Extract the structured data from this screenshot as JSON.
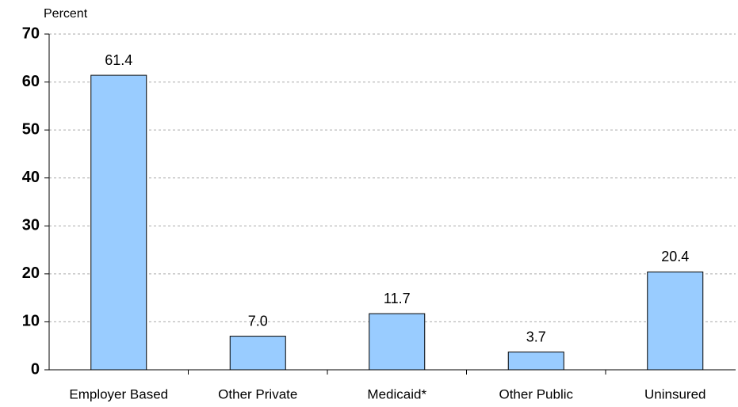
{
  "chart_data": {
    "type": "bar",
    "y_label": "Percent",
    "categories": [
      "Employer Based",
      "Other Private",
      "Medicaid*",
      "Other Public",
      "Uninsured"
    ],
    "values": [
      61.4,
      7.0,
      11.7,
      3.7,
      20.4
    ],
    "value_labels": [
      "61.4",
      "7.0",
      "11.7",
      "3.7",
      "20.4"
    ],
    "color": "#99ccff",
    "ylim": [
      0,
      70
    ],
    "yticks": [
      0,
      10,
      20,
      30,
      40,
      50,
      60,
      70
    ],
    "grid": true
  }
}
